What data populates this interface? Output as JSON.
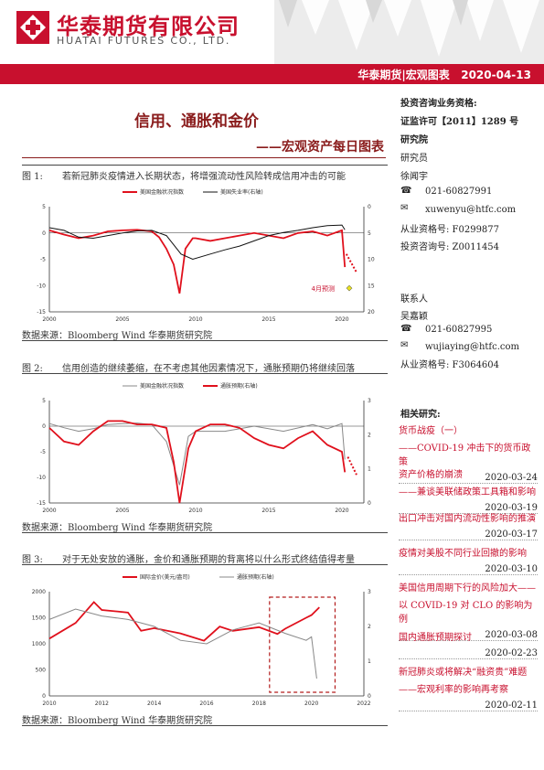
{
  "header": {
    "brand_cn": "华泰期货有限公司",
    "brand_en": "HUATAI FUTURES CO., LTD.",
    "bar_text": "华泰期货|宏观图表   2020-04-13"
  },
  "title": "信用、通胀和金价",
  "subtitle": "——宏观资产每日图表",
  "figures": [
    {
      "label": "图 1:",
      "caption": "若新冠肺炎疫情进入长期状态，将增强流动性风险转成信用冲击的可能",
      "source": "数据来源：Bloomberg   Wind   华泰期货研究院"
    },
    {
      "label": "图 2:",
      "caption": "信用创造的继续萎缩，在不考虑其他因素情况下，通胀预期仍将继续回落",
      "source": "数据来源：Bloomberg    Wind   华泰期货研究院"
    },
    {
      "label": "图 3:",
      "caption": "对于无处安放的通胀，金价和通胀预期的背离将以什么形式终结值得考量",
      "source": "数据来源：Bloomberg   Wind   华泰期货研究院"
    }
  ],
  "chart_data": [
    {
      "type": "line",
      "series": [
        {
          "name": "美国金融状况指数",
          "color": "#e0101c",
          "x": [
            2000,
            2001,
            2002,
            2003,
            2004,
            2005,
            2006,
            2007,
            2007.5,
            2008,
            2008.5,
            2008.9,
            2009.3,
            2009.8,
            2010,
            2011,
            2012,
            2013,
            2014,
            2015,
            2016,
            2017,
            2018,
            2019,
            2019.8,
            2020,
            2020.2
          ],
          "values": [
            0.5,
            -0.3,
            -1,
            -0.5,
            0.3,
            0.5,
            0.6,
            0.3,
            -0.8,
            -3,
            -6,
            -11.5,
            -3,
            -1,
            -1,
            -1.5,
            -1,
            -0.5,
            0,
            -0.5,
            -1,
            0,
            0.3,
            -0.5,
            0.3,
            0.5,
            -6.5
          ]
        },
        {
          "name": "美国失业率(右轴)",
          "color": "#111111",
          "x": [
            2000,
            2001,
            2002,
            2003,
            2004,
            2005,
            2006,
            2007,
            2008,
            2009,
            2009.8,
            2011,
            2012,
            2013,
            2014,
            2015,
            2016,
            2017,
            2018,
            2019,
            2020,
            2020.2
          ],
          "values": [
            4,
            4.5,
            5.8,
            6,
            5.5,
            5,
            4.6,
            4.5,
            5.5,
            9,
            10,
            9,
            8.2,
            7.5,
            6.5,
            5.5,
            4.9,
            4.5,
            4,
            3.6,
            3.5,
            4.4
          ]
        }
      ],
      "annotation": "4月预测",
      "ylim": [
        -15,
        5
      ],
      "y2lim": [
        0,
        20
      ],
      "xlim": [
        2000,
        2021.5
      ],
      "x_ticks": [
        2000,
        2005,
        2010,
        2015,
        2020
      ],
      "y_ticks": [
        5,
        0,
        -5,
        -10,
        -15
      ],
      "y2_ticks": [
        0,
        5,
        10,
        15,
        20
      ]
    },
    {
      "type": "line",
      "series": [
        {
          "name": "美国金融状况指数",
          "color": "#888888",
          "x": [
            2000,
            2001,
            2002,
            2003,
            2004,
            2005,
            2006,
            2007,
            2008,
            2008.9,
            2009.5,
            2010,
            2012,
            2014,
            2016,
            2018,
            2019,
            2020,
            2020.2
          ],
          "values": [
            0.5,
            -0.3,
            -1,
            -0.5,
            0.3,
            0.5,
            0.6,
            0.3,
            -3,
            -11.5,
            -2,
            -1,
            -1,
            0,
            -1,
            0.3,
            -0.5,
            0.5,
            -6.5
          ]
        },
        {
          "name": "通胀预期(右轴)",
          "color": "#e0101c",
          "x": [
            2000,
            2001,
            2002,
            2003,
            2004,
            2005,
            2006,
            2007,
            2008,
            2008.5,
            2008.9,
            2009.5,
            2010,
            2011,
            2012,
            2013,
            2014,
            2015,
            2016,
            2017,
            2018,
            2019,
            2020,
            2020.2
          ],
          "values": [
            2.2,
            1.8,
            1.7,
            2.1,
            2.4,
            2.4,
            2.3,
            2.3,
            2.2,
            1.2,
            0,
            1.6,
            2.1,
            2.3,
            2.3,
            2.2,
            1.9,
            1.7,
            1.6,
            1.9,
            2.1,
            1.7,
            1.5,
            0.9
          ]
        }
      ],
      "ylim": [
        -15,
        5
      ],
      "y2lim": [
        0,
        3
      ],
      "xlim": [
        2000,
        2021.5
      ],
      "x_ticks": [
        2000,
        2005,
        2010,
        2015,
        2020
      ],
      "y_ticks": [
        5,
        0,
        -5,
        -10,
        -15
      ],
      "y2_ticks": [
        0,
        1,
        2,
        3
      ]
    },
    {
      "type": "line",
      "series": [
        {
          "name": "国际金价(美元/盎司)",
          "color": "#e0101c",
          "x": [
            2010,
            2011,
            2011.7,
            2012,
            2013,
            2013.5,
            2014,
            2015,
            2015.9,
            2016.5,
            2017,
            2018,
            2018.7,
            2019,
            2019.8,
            2020,
            2020.3
          ],
          "values": [
            1100,
            1400,
            1800,
            1650,
            1600,
            1250,
            1300,
            1200,
            1060,
            1330,
            1250,
            1320,
            1190,
            1290,
            1500,
            1550,
            1700
          ]
        },
        {
          "name": "通胀预期(右轴)",
          "color": "#888888",
          "x": [
            2010,
            2011,
            2012,
            2013,
            2014,
            2015,
            2016,
            2017,
            2018,
            2019,
            2019.8,
            2020,
            2020.2
          ],
          "values": [
            2.2,
            2.5,
            2.3,
            2.2,
            2,
            1.6,
            1.5,
            1.9,
            2.1,
            1.8,
            1.6,
            1.7,
            0.5
          ]
        }
      ],
      "ylim": [
        0,
        2000
      ],
      "y2lim": [
        0,
        3
      ],
      "xlim": [
        2010,
        2022
      ],
      "x_ticks": [
        2010,
        2012,
        2014,
        2016,
        2018,
        2020,
        2022
      ],
      "y_ticks": [
        0,
        500,
        1000,
        1500,
        2000
      ],
      "y2_ticks": [
        0,
        1,
        2,
        3
      ]
    }
  ],
  "sidebar": {
    "qual_title": "投资咨询业务资格:",
    "license": "证监许可【2011】1289 号",
    "institute": "研究院",
    "role": "研究员",
    "analyst1": "徐闻宇",
    "phone1": "021-60827991",
    "email1": "xuwenyu@htfc.com",
    "cert1": "从业资格号: F0299877",
    "invcert1": "投资咨询号: Z0011454",
    "contact_label": "联系人",
    "analyst2": "吴嘉颖",
    "phone2": "021-60827995",
    "email2": "wujiaying@htfc.com",
    "cert2": "从业资格号: F3064604",
    "related_title": "相关研究:",
    "related": [
      {
        "line1": "货币战疫（一）",
        "line2": "——COVID-19 冲击下的货币政策",
        "date": "2020-03-24"
      },
      {
        "line1": "资产价格的崩溃",
        "line2": "——兼谈美联储政策工具箱和影响",
        "date": "2020-03-19"
      },
      {
        "line1": "出口冲击对国内流动性影响的推演",
        "line2": "",
        "date": "2020-03-17"
      },
      {
        "line1": "疫情对美股不同行业回撤的影响",
        "line2": "",
        "date": "2020-03-10"
      },
      {
        "line1": "美国信用周期下行的风险加大——",
        "line2": "以 COVID-19 对 CLO 的影响为例",
        "date": "2020-03-08"
      },
      {
        "line1": "国内通胀预期探讨",
        "line2": "",
        "date": "2020-02-23"
      },
      {
        "line1": "新冠肺炎或将解决“融资贵”难题",
        "line2": "——宏观利率的影响再考察",
        "date": "2020-02-11"
      }
    ]
  }
}
